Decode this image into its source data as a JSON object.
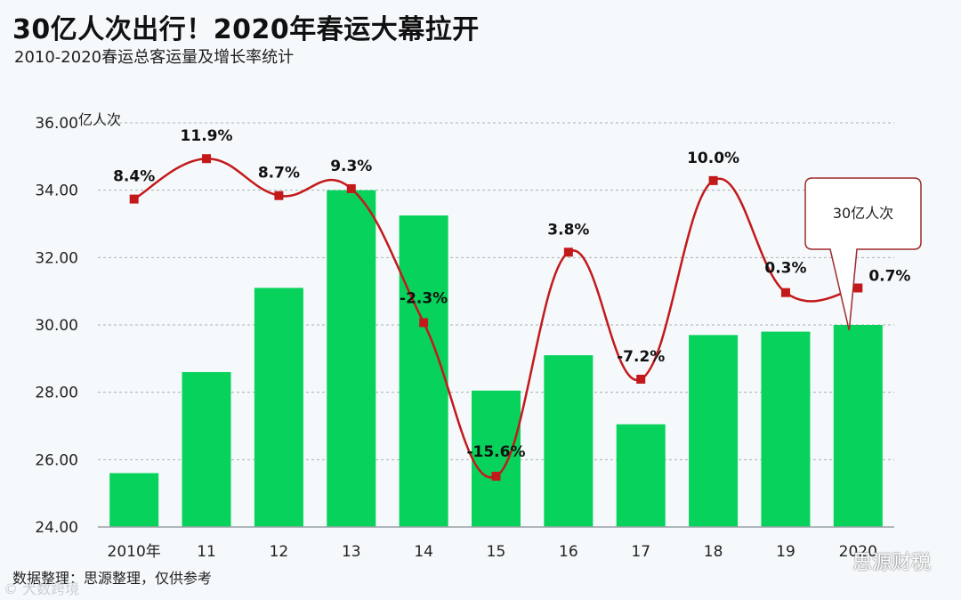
{
  "title": "30亿人次出行！2020年春运大幕拉开",
  "subtitle": "2010-2020春运总客运量及增长率统计",
  "source": "数据整理：思源整理，仅供参考",
  "watermark_left": "© 大数跨境",
  "watermark_right": "思源财税",
  "colors": {
    "bar": "#07d35c",
    "line": "#c3191a",
    "marker": "#c3191a",
    "grid": "#a9b1b6",
    "callout_border": "#9e2a2b"
  },
  "chart_data": {
    "type": "bar",
    "categories": [
      "2010年",
      "11",
      "12",
      "13",
      "14",
      "15",
      "16",
      "17",
      "18",
      "19",
      "2020"
    ],
    "ylabel": "亿人次",
    "ylim": [
      24,
      36
    ],
    "yticks": [
      "24.00",
      "26.00",
      "28.00",
      "30.00",
      "32.00",
      "34.00",
      "36.00"
    ],
    "grid": true,
    "series": [
      {
        "values": [
          25.6,
          28.6,
          31.1,
          34.0,
          33.25,
          28.05,
          29.1,
          27.05,
          29.7,
          29.8,
          30.0
        ]
      },
      {
        "values": [
          8.4,
          11.9,
          8.7,
          9.3,
          -2.3,
          -15.6,
          3.8,
          -7.2,
          10.0,
          0.3,
          0.7
        ],
        "labels": [
          "8.4%",
          "11.9%",
          "8.7%",
          "9.3%",
          "-2.3%",
          "-15.6%",
          "3.8%",
          "-7.2%",
          "10.0%",
          "0.3%",
          "0.7%"
        ]
      }
    ],
    "annotation": "30亿人次"
  }
}
